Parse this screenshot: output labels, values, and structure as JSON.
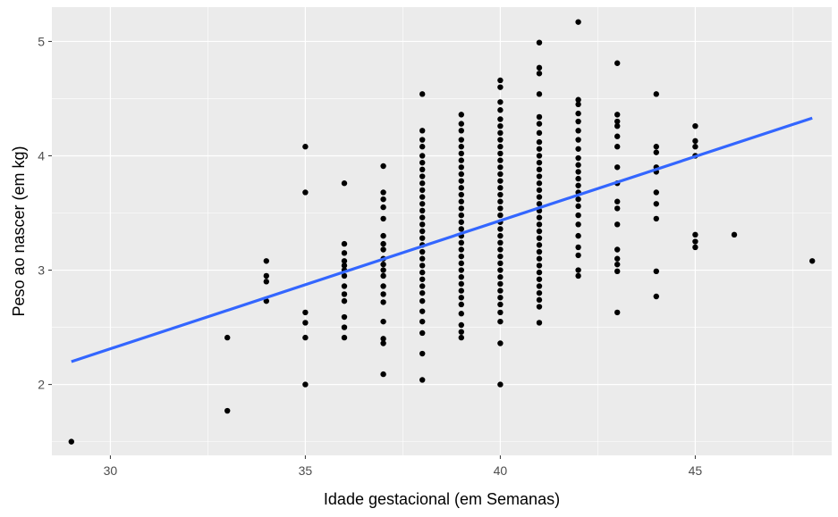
{
  "chart_data": {
    "type": "scatter",
    "title": "",
    "xlabel": "Idade gestacional (em Semanas)",
    "ylabel": "Peso ao nascer (em kg)",
    "xlim": [
      28.5,
      48.5
    ],
    "ylim": [
      1.38,
      5.3
    ],
    "xticks": [
      30,
      35,
      40,
      45
    ],
    "yticks": [
      2,
      3,
      4,
      5
    ],
    "xtick_labels": [
      "30",
      "35",
      "40",
      "45"
    ],
    "ytick_labels": [
      "2",
      "3",
      "4",
      "5"
    ],
    "grid": true,
    "legend": "none",
    "colors": {
      "panel": "#ebebeb",
      "grid": "#ffffff",
      "point": "#000000",
      "fit_line": "#3366ff"
    },
    "fit_line": {
      "type": "linear",
      "x": [
        29,
        48
      ],
      "y": [
        2.2,
        4.33
      ]
    },
    "points": [
      {
        "x": 29,
        "y": 1.5
      },
      {
        "x": 33,
        "y": 1.77
      },
      {
        "x": 33,
        "y": 2.41
      },
      {
        "x": 34,
        "y": 2.73
      },
      {
        "x": 34,
        "y": 2.9
      },
      {
        "x": 34,
        "y": 2.95
      },
      {
        "x": 34,
        "y": 3.08
      },
      {
        "x": 35,
        "y": 2.0
      },
      {
        "x": 35,
        "y": 2.41
      },
      {
        "x": 35,
        "y": 2.54
      },
      {
        "x": 35,
        "y": 2.63
      },
      {
        "x": 35,
        "y": 3.68
      },
      {
        "x": 35,
        "y": 4.08
      },
      {
        "x": 36,
        "y": 2.41
      },
      {
        "x": 36,
        "y": 2.5
      },
      {
        "x": 36,
        "y": 2.59
      },
      {
        "x": 36,
        "y": 2.73
      },
      {
        "x": 36,
        "y": 2.79
      },
      {
        "x": 36,
        "y": 2.86
      },
      {
        "x": 36,
        "y": 2.95
      },
      {
        "x": 36,
        "y": 3.0
      },
      {
        "x": 36,
        "y": 3.04
      },
      {
        "x": 36,
        "y": 3.08
      },
      {
        "x": 36,
        "y": 3.15
      },
      {
        "x": 36,
        "y": 3.23
      },
      {
        "x": 36,
        "y": 3.76
      },
      {
        "x": 37,
        "y": 2.09
      },
      {
        "x": 37,
        "y": 2.36
      },
      {
        "x": 37,
        "y": 2.4
      },
      {
        "x": 37,
        "y": 2.55
      },
      {
        "x": 37,
        "y": 2.72
      },
      {
        "x": 37,
        "y": 2.79
      },
      {
        "x": 37,
        "y": 2.86
      },
      {
        "x": 37,
        "y": 2.95
      },
      {
        "x": 37,
        "y": 3.0
      },
      {
        "x": 37,
        "y": 3.05
      },
      {
        "x": 37,
        "y": 3.1
      },
      {
        "x": 37,
        "y": 3.18
      },
      {
        "x": 37,
        "y": 3.23
      },
      {
        "x": 37,
        "y": 3.3
      },
      {
        "x": 37,
        "y": 3.45
      },
      {
        "x": 37,
        "y": 3.55
      },
      {
        "x": 37,
        "y": 3.62
      },
      {
        "x": 37,
        "y": 3.68
      },
      {
        "x": 37,
        "y": 3.91
      },
      {
        "x": 38,
        "y": 2.04
      },
      {
        "x": 38,
        "y": 2.27
      },
      {
        "x": 38,
        "y": 2.45
      },
      {
        "x": 38,
        "y": 2.55
      },
      {
        "x": 38,
        "y": 2.64
      },
      {
        "x": 38,
        "y": 2.73
      },
      {
        "x": 38,
        "y": 2.8
      },
      {
        "x": 38,
        "y": 2.86
      },
      {
        "x": 38,
        "y": 2.92
      },
      {
        "x": 38,
        "y": 2.98
      },
      {
        "x": 38,
        "y": 3.04
      },
      {
        "x": 38,
        "y": 3.1
      },
      {
        "x": 38,
        "y": 3.16
      },
      {
        "x": 38,
        "y": 3.22
      },
      {
        "x": 38,
        "y": 3.28
      },
      {
        "x": 38,
        "y": 3.34
      },
      {
        "x": 38,
        "y": 3.4
      },
      {
        "x": 38,
        "y": 3.46
      },
      {
        "x": 38,
        "y": 3.52
      },
      {
        "x": 38,
        "y": 3.58
      },
      {
        "x": 38,
        "y": 3.64
      },
      {
        "x": 38,
        "y": 3.7
      },
      {
        "x": 38,
        "y": 3.76
      },
      {
        "x": 38,
        "y": 3.82
      },
      {
        "x": 38,
        "y": 3.88
      },
      {
        "x": 38,
        "y": 3.94
      },
      {
        "x": 38,
        "y": 4.0
      },
      {
        "x": 38,
        "y": 4.08
      },
      {
        "x": 38,
        "y": 4.14
      },
      {
        "x": 38,
        "y": 4.22
      },
      {
        "x": 38,
        "y": 4.54
      },
      {
        "x": 39,
        "y": 2.41
      },
      {
        "x": 39,
        "y": 2.46
      },
      {
        "x": 39,
        "y": 2.52
      },
      {
        "x": 39,
        "y": 2.62
      },
      {
        "x": 39,
        "y": 2.7
      },
      {
        "x": 39,
        "y": 2.76
      },
      {
        "x": 39,
        "y": 2.82
      },
      {
        "x": 39,
        "y": 2.88
      },
      {
        "x": 39,
        "y": 2.94
      },
      {
        "x": 39,
        "y": 3.0
      },
      {
        "x": 39,
        "y": 3.06
      },
      {
        "x": 39,
        "y": 3.12
      },
      {
        "x": 39,
        "y": 3.18
      },
      {
        "x": 39,
        "y": 3.24
      },
      {
        "x": 39,
        "y": 3.3
      },
      {
        "x": 39,
        "y": 3.36
      },
      {
        "x": 39,
        "y": 3.42
      },
      {
        "x": 39,
        "y": 3.48
      },
      {
        "x": 39,
        "y": 3.54
      },
      {
        "x": 39,
        "y": 3.6
      },
      {
        "x": 39,
        "y": 3.66
      },
      {
        "x": 39,
        "y": 3.72
      },
      {
        "x": 39,
        "y": 3.78
      },
      {
        "x": 39,
        "y": 3.84
      },
      {
        "x": 39,
        "y": 3.9
      },
      {
        "x": 39,
        "y": 3.96
      },
      {
        "x": 39,
        "y": 4.02
      },
      {
        "x": 39,
        "y": 4.08
      },
      {
        "x": 39,
        "y": 4.14
      },
      {
        "x": 39,
        "y": 4.22
      },
      {
        "x": 39,
        "y": 4.28
      },
      {
        "x": 39,
        "y": 4.36
      },
      {
        "x": 40,
        "y": 2.0
      },
      {
        "x": 40,
        "y": 2.36
      },
      {
        "x": 40,
        "y": 2.55
      },
      {
        "x": 40,
        "y": 2.63
      },
      {
        "x": 40,
        "y": 2.7
      },
      {
        "x": 40,
        "y": 2.76
      },
      {
        "x": 40,
        "y": 2.82
      },
      {
        "x": 40,
        "y": 2.88
      },
      {
        "x": 40,
        "y": 2.94
      },
      {
        "x": 40,
        "y": 3.0
      },
      {
        "x": 40,
        "y": 3.06
      },
      {
        "x": 40,
        "y": 3.12
      },
      {
        "x": 40,
        "y": 3.18
      },
      {
        "x": 40,
        "y": 3.24
      },
      {
        "x": 40,
        "y": 3.3
      },
      {
        "x": 40,
        "y": 3.36
      },
      {
        "x": 40,
        "y": 3.42
      },
      {
        "x": 40,
        "y": 3.48
      },
      {
        "x": 40,
        "y": 3.54
      },
      {
        "x": 40,
        "y": 3.6
      },
      {
        "x": 40,
        "y": 3.66
      },
      {
        "x": 40,
        "y": 3.72
      },
      {
        "x": 40,
        "y": 3.78
      },
      {
        "x": 40,
        "y": 3.84
      },
      {
        "x": 40,
        "y": 3.9
      },
      {
        "x": 40,
        "y": 3.96
      },
      {
        "x": 40,
        "y": 4.02
      },
      {
        "x": 40,
        "y": 4.08
      },
      {
        "x": 40,
        "y": 4.14
      },
      {
        "x": 40,
        "y": 4.2
      },
      {
        "x": 40,
        "y": 4.26
      },
      {
        "x": 40,
        "y": 4.32
      },
      {
        "x": 40,
        "y": 4.4
      },
      {
        "x": 40,
        "y": 4.47
      },
      {
        "x": 40,
        "y": 4.6
      },
      {
        "x": 40,
        "y": 4.66
      },
      {
        "x": 41,
        "y": 2.54
      },
      {
        "x": 41,
        "y": 2.68
      },
      {
        "x": 41,
        "y": 2.74
      },
      {
        "x": 41,
        "y": 2.8
      },
      {
        "x": 41,
        "y": 2.86
      },
      {
        "x": 41,
        "y": 2.92
      },
      {
        "x": 41,
        "y": 2.98
      },
      {
        "x": 41,
        "y": 3.04
      },
      {
        "x": 41,
        "y": 3.1
      },
      {
        "x": 41,
        "y": 3.16
      },
      {
        "x": 41,
        "y": 3.22
      },
      {
        "x": 41,
        "y": 3.28
      },
      {
        "x": 41,
        "y": 3.34
      },
      {
        "x": 41,
        "y": 3.4
      },
      {
        "x": 41,
        "y": 3.46
      },
      {
        "x": 41,
        "y": 3.52
      },
      {
        "x": 41,
        "y": 3.58
      },
      {
        "x": 41,
        "y": 3.64
      },
      {
        "x": 41,
        "y": 3.7
      },
      {
        "x": 41,
        "y": 3.76
      },
      {
        "x": 41,
        "y": 3.82
      },
      {
        "x": 41,
        "y": 3.88
      },
      {
        "x": 41,
        "y": 3.94
      },
      {
        "x": 41,
        "y": 4.0
      },
      {
        "x": 41,
        "y": 4.06
      },
      {
        "x": 41,
        "y": 4.12
      },
      {
        "x": 41,
        "y": 4.2
      },
      {
        "x": 41,
        "y": 4.28
      },
      {
        "x": 41,
        "y": 4.34
      },
      {
        "x": 41,
        "y": 4.54
      },
      {
        "x": 41,
        "y": 4.72
      },
      {
        "x": 41,
        "y": 4.77
      },
      {
        "x": 41,
        "y": 4.99
      },
      {
        "x": 42,
        "y": 2.95
      },
      {
        "x": 42,
        "y": 3.0
      },
      {
        "x": 42,
        "y": 3.13
      },
      {
        "x": 42,
        "y": 3.2
      },
      {
        "x": 42,
        "y": 3.3
      },
      {
        "x": 42,
        "y": 3.4
      },
      {
        "x": 42,
        "y": 3.48
      },
      {
        "x": 42,
        "y": 3.56
      },
      {
        "x": 42,
        "y": 3.62
      },
      {
        "x": 42,
        "y": 3.68
      },
      {
        "x": 42,
        "y": 3.74
      },
      {
        "x": 42,
        "y": 3.8
      },
      {
        "x": 42,
        "y": 3.86
      },
      {
        "x": 42,
        "y": 3.92
      },
      {
        "x": 42,
        "y": 3.98
      },
      {
        "x": 42,
        "y": 4.06
      },
      {
        "x": 42,
        "y": 4.14
      },
      {
        "x": 42,
        "y": 4.22
      },
      {
        "x": 42,
        "y": 4.3
      },
      {
        "x": 42,
        "y": 4.37
      },
      {
        "x": 42,
        "y": 4.45
      },
      {
        "x": 42,
        "y": 4.49
      },
      {
        "x": 42,
        "y": 5.17
      },
      {
        "x": 43,
        "y": 2.63
      },
      {
        "x": 43,
        "y": 2.99
      },
      {
        "x": 43,
        "y": 3.05
      },
      {
        "x": 43,
        "y": 3.1
      },
      {
        "x": 43,
        "y": 3.18
      },
      {
        "x": 43,
        "y": 3.4
      },
      {
        "x": 43,
        "y": 3.54
      },
      {
        "x": 43,
        "y": 3.6
      },
      {
        "x": 43,
        "y": 3.76
      },
      {
        "x": 43,
        "y": 3.9
      },
      {
        "x": 43,
        "y": 4.08
      },
      {
        "x": 43,
        "y": 4.17
      },
      {
        "x": 43,
        "y": 4.26
      },
      {
        "x": 43,
        "y": 4.3
      },
      {
        "x": 43,
        "y": 4.36
      },
      {
        "x": 43,
        "y": 4.81
      },
      {
        "x": 44,
        "y": 2.77
      },
      {
        "x": 44,
        "y": 2.99
      },
      {
        "x": 44,
        "y": 3.45
      },
      {
        "x": 44,
        "y": 3.58
      },
      {
        "x": 44,
        "y": 3.68
      },
      {
        "x": 44,
        "y": 3.86
      },
      {
        "x": 44,
        "y": 3.9
      },
      {
        "x": 44,
        "y": 4.03
      },
      {
        "x": 44,
        "y": 4.08
      },
      {
        "x": 44,
        "y": 4.54
      },
      {
        "x": 45,
        "y": 3.2
      },
      {
        "x": 45,
        "y": 3.25
      },
      {
        "x": 45,
        "y": 3.31
      },
      {
        "x": 45,
        "y": 4.0
      },
      {
        "x": 45,
        "y": 4.08
      },
      {
        "x": 45,
        "y": 4.13
      },
      {
        "x": 45,
        "y": 4.26
      },
      {
        "x": 46,
        "y": 3.31
      },
      {
        "x": 48,
        "y": 3.08
      }
    ]
  }
}
